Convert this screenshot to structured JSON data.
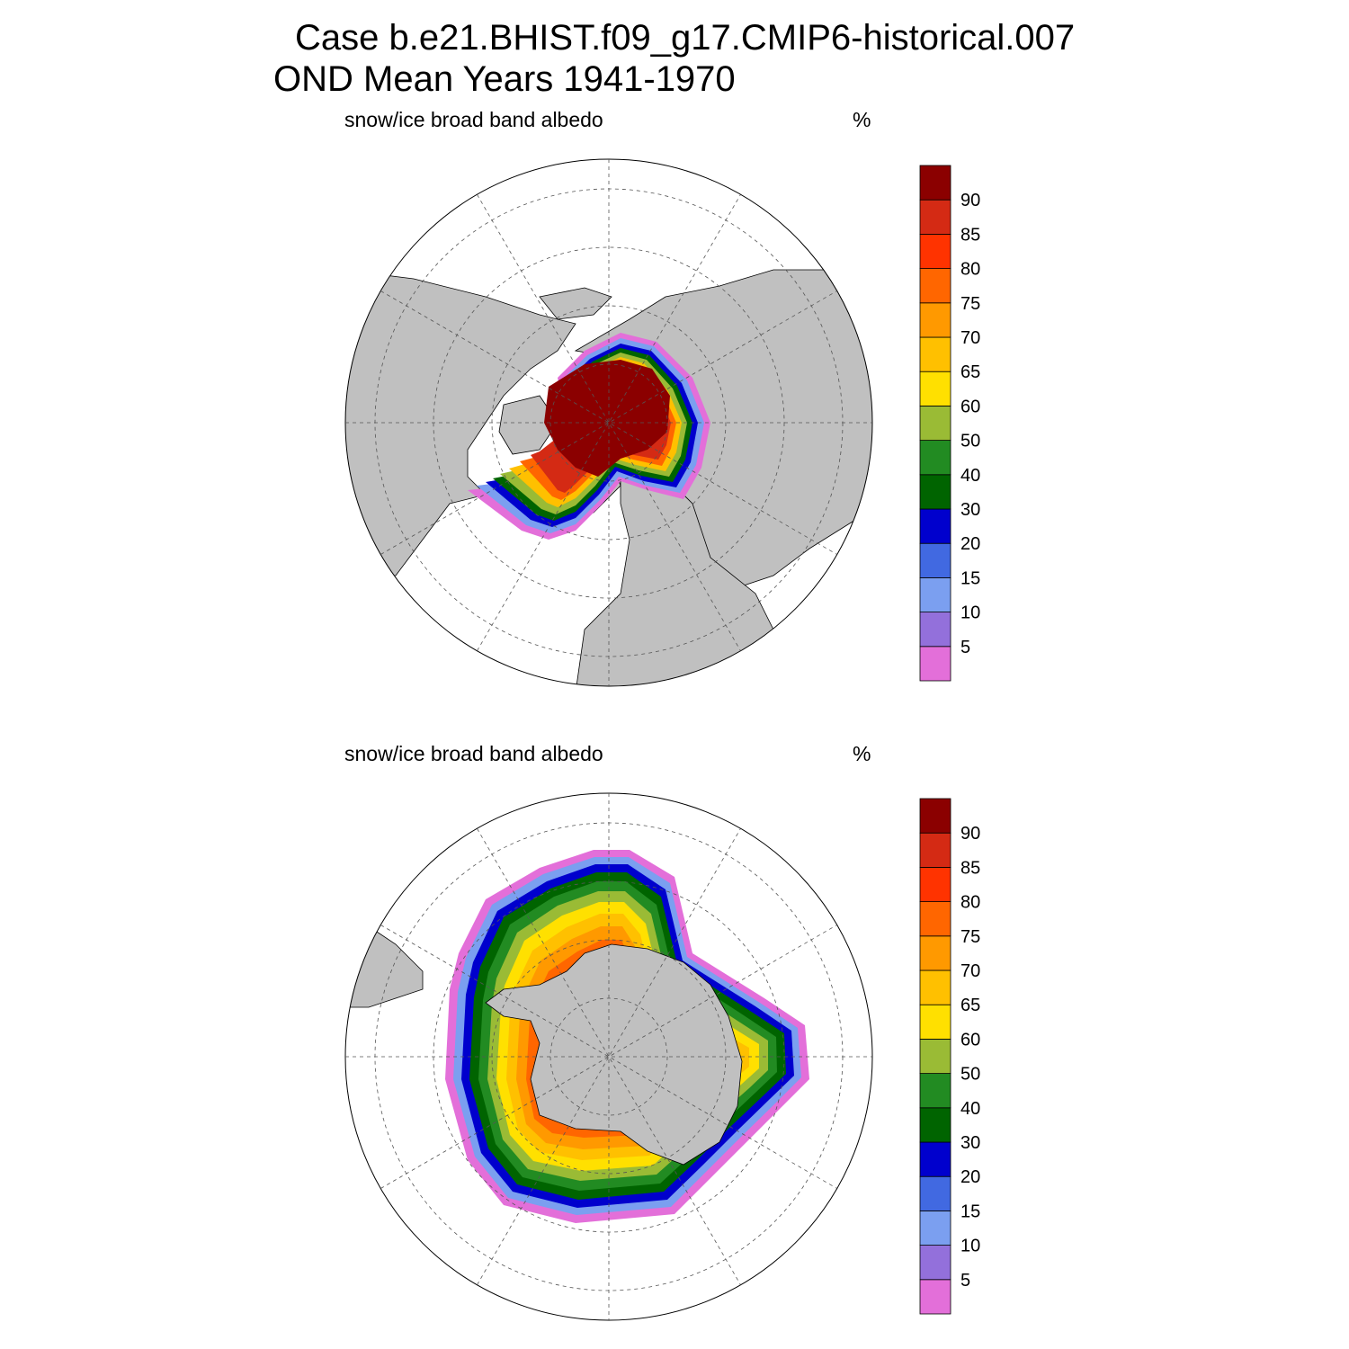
{
  "title": {
    "line1": "Case b.e21.BHIST.f09_g17.CMIP6-historical.007",
    "line2": "OND Mean   Years 1941-1970"
  },
  "panels": [
    {
      "id": "north",
      "hemisphere": "north",
      "variable": "snow/ice broad band albedo",
      "units": "%"
    },
    {
      "id": "south",
      "hemisphere": "south",
      "variable": "snow/ice broad band albedo",
      "units": "%"
    }
  ],
  "colorbar": {
    "levels": [
      5,
      10,
      15,
      20,
      30,
      40,
      50,
      60,
      65,
      70,
      75,
      80,
      85,
      90
    ],
    "labels": [
      "5",
      "10",
      "15",
      "20",
      "30",
      "40",
      "50",
      "60",
      "65",
      "70",
      "75",
      "80",
      "85",
      "90"
    ],
    "colors": [
      "#e36fd9",
      "#9370db",
      "#7b9ff0",
      "#4169e1",
      "#0000cd",
      "#006400",
      "#228b22",
      "#9abb35",
      "#ffe000",
      "#ffc000",
      "#ff9900",
      "#ff6600",
      "#ff3300",
      "#d42a14",
      "#8b0000"
    ]
  },
  "map_colors": {
    "land": "#c0c0c0",
    "ocean": "#ffffff",
    "grid": "#555555"
  }
}
